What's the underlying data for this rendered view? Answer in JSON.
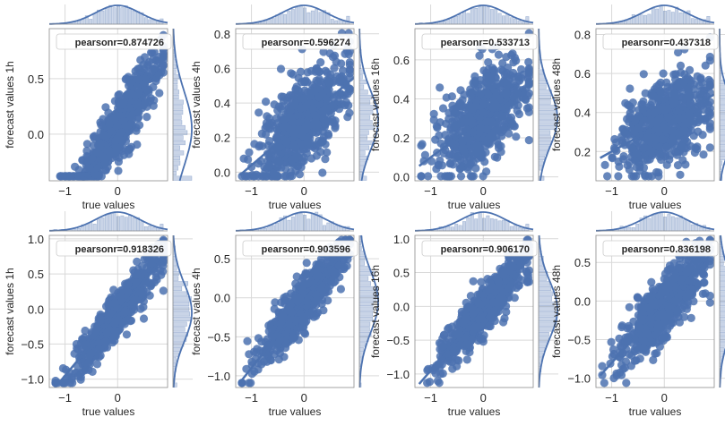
{
  "colors": {
    "accent": "#4c72b0",
    "grid": "#d9d9d9",
    "frame": "#8c8c8c",
    "text": "#262626"
  },
  "chart_data": [
    {
      "type": "scatter",
      "xlabel": "true values",
      "ylabel": "forecast values 1h",
      "legend": "pearsonr=0.874726",
      "legend_placement": "top-right",
      "xlim": [
        -1.3,
        0.95
      ],
      "ylim": [
        -0.42,
        0.95
      ],
      "xticks": [
        -1,
        0
      ],
      "xtick_labels": [
        "−1",
        "0"
      ],
      "yticks": [
        0.0,
        0.5
      ],
      "ytick_labels": [
        "0.0",
        "0.5"
      ],
      "grid": true,
      "regression_line": true,
      "marginal_distributions": true,
      "cloud": {
        "x_center": 0.0,
        "x_spread": 0.42,
        "slope": 0.72,
        "intercept": 0.05,
        "noise": 0.13
      }
    },
    {
      "type": "scatter",
      "xlabel": "true values",
      "ylabel": "forecast values 4h",
      "legend": "pearsonr=0.596274",
      "legend_placement": "top-right",
      "xlim": [
        -1.3,
        0.95
      ],
      "ylim": [
        -0.05,
        0.83
      ],
      "xticks": [
        -1,
        0
      ],
      "xtick_labels": [
        "−1",
        "0"
      ],
      "yticks": [
        0.0,
        0.2,
        0.4,
        0.6,
        0.8
      ],
      "ytick_labels": [
        "0.0",
        "0.2",
        "0.4",
        "0.6",
        "0.8"
      ],
      "grid": true,
      "regression_line": true,
      "marginal_distributions": true,
      "cloud": {
        "x_center": 0.0,
        "x_spread": 0.42,
        "slope": 0.26,
        "intercept": 0.3,
        "noise": 0.13
      }
    },
    {
      "type": "scatter",
      "xlabel": "true values",
      "ylabel": "forecast values 16h",
      "legend": "pearsonr=0.533713",
      "legend_placement": "top-right",
      "xlim": [
        -1.3,
        0.95
      ],
      "ylim": [
        -0.02,
        0.76
      ],
      "xticks": [
        -1,
        0
      ],
      "xtick_labels": [
        "−1",
        "0"
      ],
      "yticks": [
        0.0,
        0.2,
        0.4,
        0.6
      ],
      "ytick_labels": [
        "0.0",
        "0.2",
        "0.4",
        "0.6"
      ],
      "grid": true,
      "regression_line": true,
      "marginal_distributions": true,
      "cloud": {
        "x_center": 0.0,
        "x_spread": 0.42,
        "slope": 0.2,
        "intercept": 0.3,
        "noise": 0.12
      }
    },
    {
      "type": "scatter",
      "xlabel": "true values",
      "ylabel": "forecast values 48h",
      "legend": "pearsonr=0.437318",
      "legend_placement": "top-right",
      "xlim": [
        -1.3,
        0.95
      ],
      "ylim": [
        0.05,
        0.83
      ],
      "xticks": [
        -1,
        0
      ],
      "xtick_labels": [
        "−1",
        "0"
      ],
      "yticks": [
        0.2,
        0.4,
        0.6,
        0.8
      ],
      "ytick_labels": [
        "0.2",
        "0.4",
        "0.6",
        "0.8"
      ],
      "grid": true,
      "regression_line": true,
      "marginal_distributions": true,
      "cloud": {
        "x_center": 0.0,
        "x_spread": 0.42,
        "slope": 0.15,
        "intercept": 0.35,
        "noise": 0.11
      }
    },
    {
      "type": "scatter",
      "xlabel": "true values",
      "ylabel": "forecast values 1h",
      "legend": "pearsonr=0.918326",
      "legend_placement": "top-right",
      "xlim": [
        -1.3,
        0.95
      ],
      "ylim": [
        -1.12,
        1.05
      ],
      "xticks": [
        -1,
        0
      ],
      "xtick_labels": [
        "−1",
        "0"
      ],
      "yticks": [
        -1.0,
        -0.5,
        0.0,
        0.5,
        1.0
      ],
      "ytick_labels": [
        "−1.0",
        "−0.5",
        "0.0",
        "0.5",
        "1.0"
      ],
      "grid": true,
      "regression_line": true,
      "marginal_distributions": true,
      "cloud": {
        "x_center": 0.0,
        "x_spread": 0.42,
        "slope": 0.9,
        "intercept": -0.05,
        "noise": 0.16
      }
    },
    {
      "type": "scatter",
      "xlabel": "true values",
      "ylabel": "forecast values 4h",
      "legend": "pearsonr=0.903596",
      "legend_placement": "top-right",
      "xlim": [
        -1.3,
        0.95
      ],
      "ylim": [
        -1.15,
        0.8
      ],
      "xticks": [
        -1,
        0
      ],
      "xtick_labels": [
        "−1",
        "0"
      ],
      "yticks": [
        -1.0,
        -0.5,
        0.0,
        0.5
      ],
      "ytick_labels": [
        "−1.0",
        "−0.5",
        "0.0",
        "0.5"
      ],
      "grid": true,
      "regression_line": true,
      "marginal_distributions": true,
      "cloud": {
        "x_center": 0.0,
        "x_spread": 0.42,
        "slope": 0.85,
        "intercept": -0.05,
        "noise": 0.16
      }
    },
    {
      "type": "scatter",
      "xlabel": "true values",
      "ylabel": "forecast values 16h",
      "legend": "pearsonr=0.906170",
      "legend_placement": "top-right",
      "xlim": [
        -1.3,
        0.95
      ],
      "ylim": [
        -1.2,
        1.05
      ],
      "xticks": [
        -1,
        0
      ],
      "xtick_labels": [
        "−1",
        "0"
      ],
      "yticks": [
        -1.0,
        -0.5,
        0.0,
        0.5,
        1.0
      ],
      "ytick_labels": [
        "−1.0",
        "−0.5",
        "0.0",
        "0.5",
        "1.0"
      ],
      "grid": true,
      "regression_line": true,
      "marginal_distributions": true,
      "cloud": {
        "x_center": 0.0,
        "x_spread": 0.42,
        "slope": 0.9,
        "intercept": -0.05,
        "noise": 0.17
      }
    },
    {
      "type": "scatter",
      "xlabel": "true values",
      "ylabel": "forecast values 48h",
      "legend": "pearsonr=0.836198",
      "legend_placement": "top-right",
      "xlim": [
        -1.3,
        0.95
      ],
      "ylim": [
        -1.12,
        0.85
      ],
      "xticks": [
        -1,
        0
      ],
      "xtick_labels": [
        "−1",
        "0"
      ],
      "yticks": [
        -1.0,
        -0.5,
        0.0,
        0.5
      ],
      "ytick_labels": [
        "−1.0",
        "−0.5",
        "0.0",
        "0.5"
      ],
      "grid": true,
      "regression_line": true,
      "marginal_distributions": true,
      "cloud": {
        "x_center": 0.0,
        "x_spread": 0.42,
        "slope": 0.75,
        "intercept": -0.05,
        "noise": 0.2
      }
    }
  ]
}
